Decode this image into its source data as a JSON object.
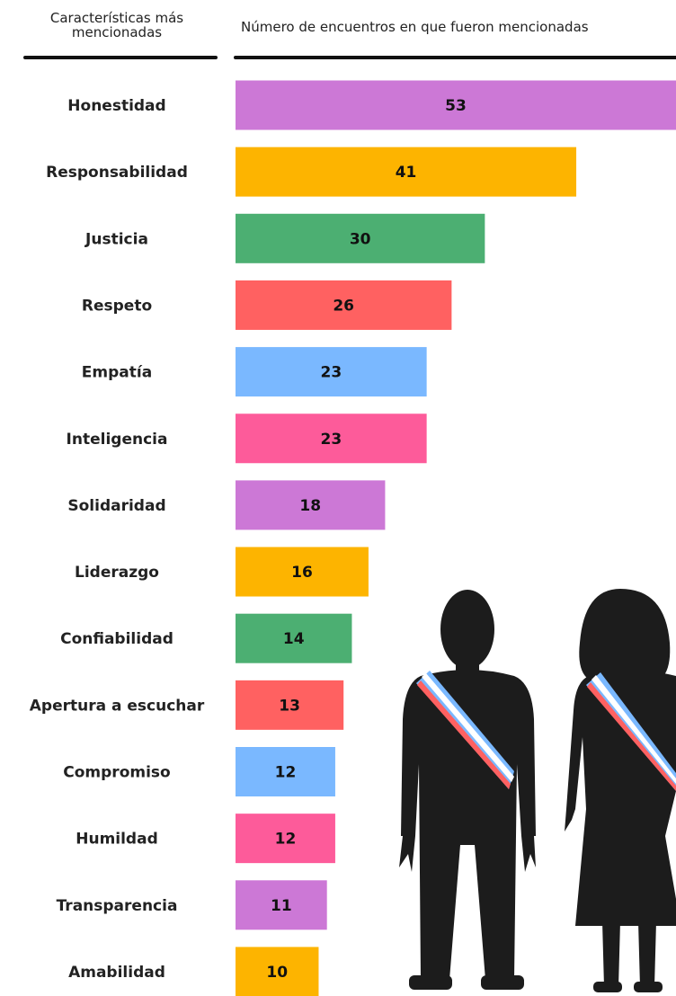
{
  "chart_data": {
    "type": "bar",
    "orientation": "horizontal",
    "category_header": "Características más mencionadas",
    "value_header": "Número de encuentros en que fueron mencionadas",
    "categories": [
      "Honestidad",
      "Responsabilidad",
      "Justicia",
      "Respeto",
      "Empatía",
      "Inteligencia",
      "Solidaridad",
      "Liderazgo",
      "Confiabilidad",
      "Apertura a escuchar",
      "Compromiso",
      "Humildad",
      "Transparencia",
      "Amabilidad"
    ],
    "values": [
      53,
      41,
      30,
      26,
      23,
      23,
      18,
      16,
      14,
      13,
      12,
      12,
      11,
      10
    ],
    "colors": [
      "#cc78d6",
      "#fdb400",
      "#4caf72",
      "#ff6161",
      "#7ab8ff",
      "#fd5b9a",
      "#cc78d6",
      "#fdb400",
      "#4caf72",
      "#ff6161",
      "#7ab8ff",
      "#fd5b9a",
      "#cc78d6",
      "#fdb400"
    ]
  }
}
